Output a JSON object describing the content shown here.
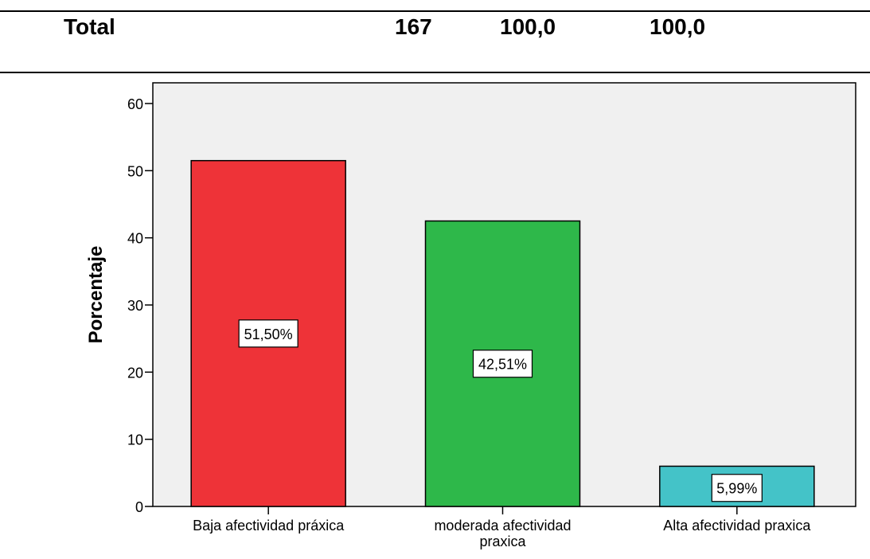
{
  "table": {
    "row_label": "Total",
    "frequency": "167",
    "percent": "100,0",
    "valid_percent": "100,0"
  },
  "chart_data": {
    "type": "bar",
    "categories": [
      "Baja afectividad práxica",
      "moderada afectividad praxica",
      "Alta afectividad praxica"
    ],
    "category_lines": [
      [
        "Baja afectividad práxica"
      ],
      [
        "moderada afectividad",
        "praxica"
      ],
      [
        "Alta afectividad praxica"
      ]
    ],
    "values": [
      51.5,
      42.51,
      5.99
    ],
    "data_labels": [
      "51,50%",
      "42,51%",
      "5,99%"
    ],
    "colors": [
      "#ee3338",
      "#2eb84a",
      "#44c3c8"
    ],
    "ylabel": "Porcentaje",
    "xlabel": "",
    "ylim": [
      0,
      60
    ],
    "yticks": [
      0,
      10,
      20,
      30,
      40,
      50,
      60
    ],
    "grid": false,
    "plot_background": "#f0f0f0"
  }
}
